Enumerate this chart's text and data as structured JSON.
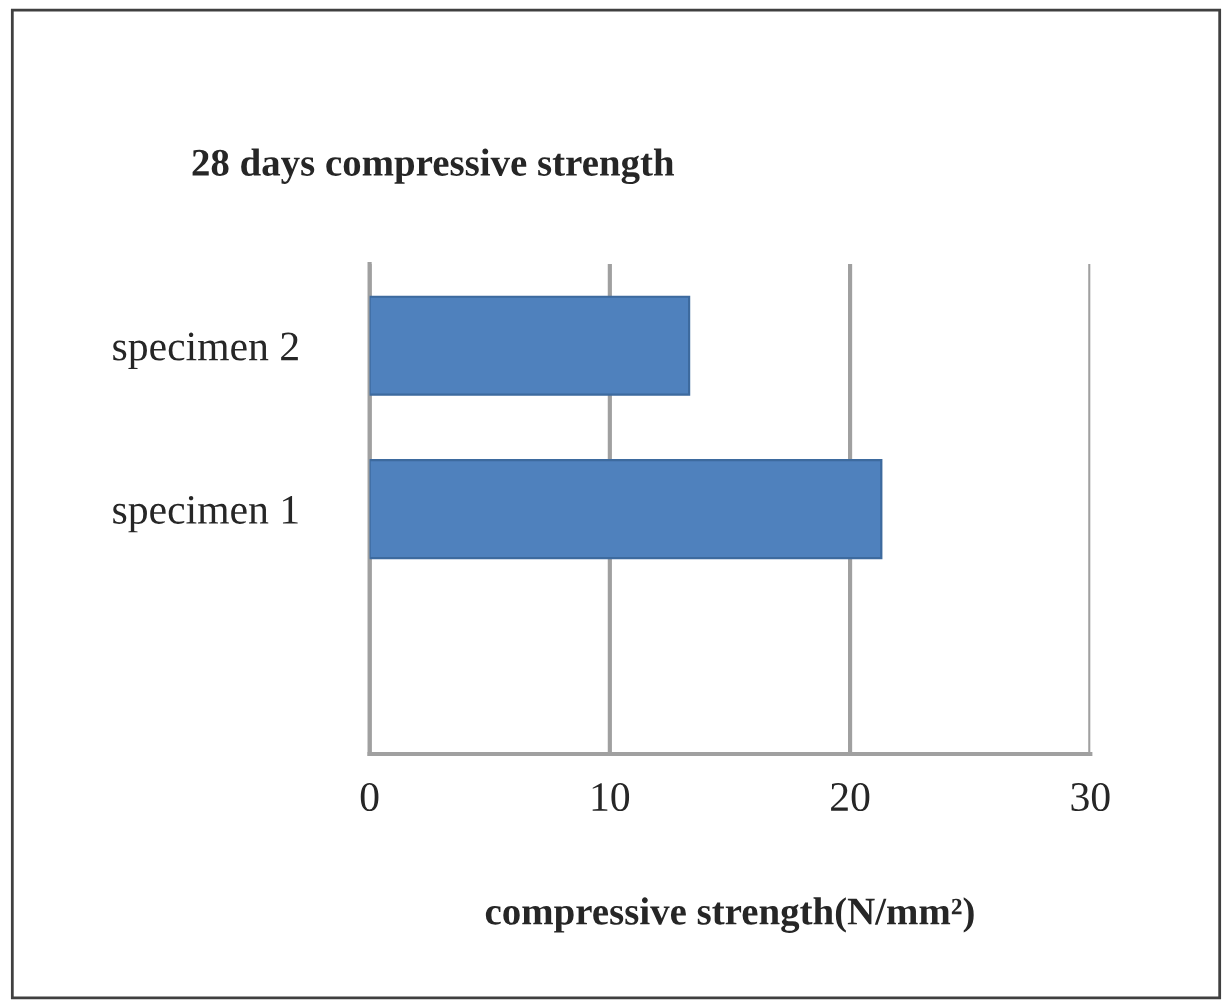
{
  "chart_data": {
    "type": "bar",
    "orientation": "horizontal",
    "title": "28 days compressive strength",
    "xlabel": "compressive strength(N/mm²)",
    "categories": [
      "specimen 2",
      "specimen 1",
      null
    ],
    "values": [
      13.3,
      21.3,
      null
    ],
    "color": "#4f81bd",
    "xlim": [
      0,
      30
    ],
    "xticks": [
      0,
      10,
      20,
      30
    ],
    "grid": "x"
  }
}
